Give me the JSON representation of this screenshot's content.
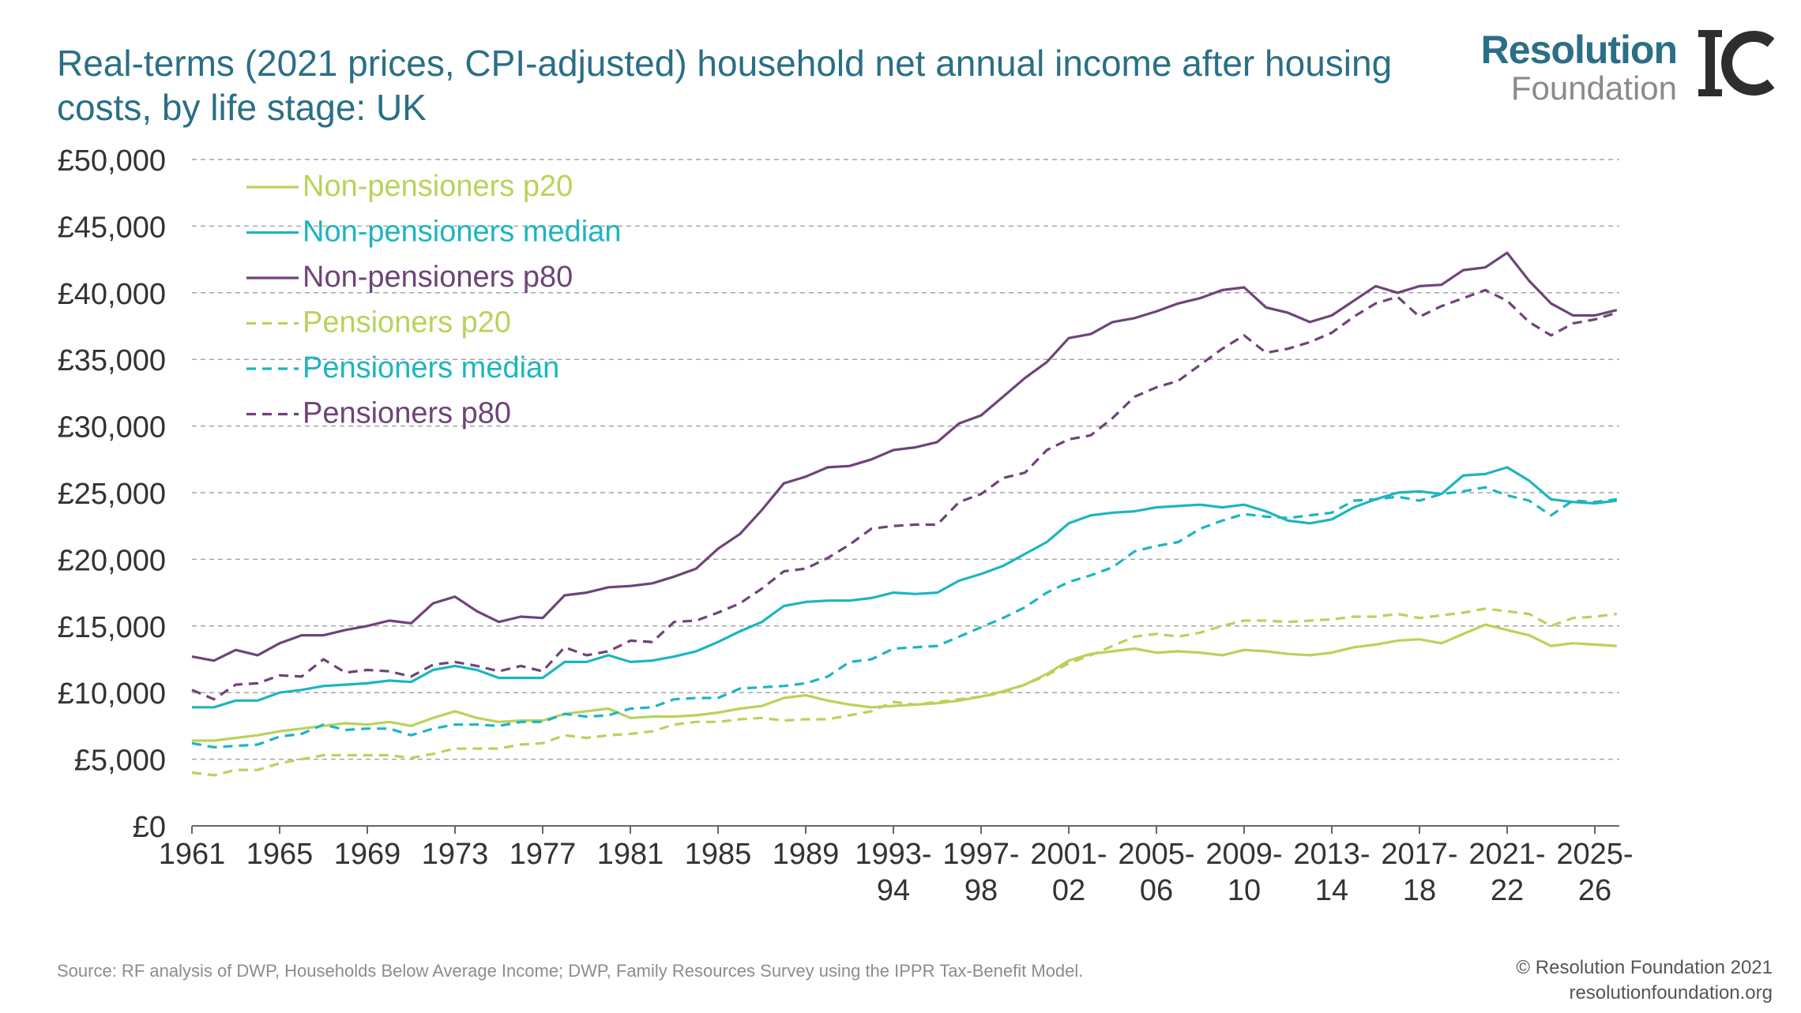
{
  "title": "Real-terms (2021 prices, CPI-adjusted) household net annual income after housing costs, by life stage: UK",
  "logo": {
    "line1": "Resolution",
    "line2": "Foundation",
    "accent": "#c6d82e",
    "icon_name": "ic-monogram-icon"
  },
  "footer": {
    "source": "Source: RF analysis of DWP, Households Below Average Income; DWP, Family Resources Survey using the IPPR Tax-Benefit Model.",
    "copyright": "© Resolution Foundation 2021",
    "website": "resolutionfoundation.org"
  },
  "colors": {
    "title": "#2a6f86",
    "light_green": "#b8d35a",
    "teal": "#1cb5c1",
    "purple": "#6e4478",
    "grid": "#a6a6a6"
  },
  "chart_data": {
    "type": "line",
    "ylim": [
      0,
      50000
    ],
    "yticks": [
      0,
      5000,
      10000,
      15000,
      20000,
      25000,
      30000,
      35000,
      40000,
      45000,
      50000
    ],
    "ytick_labels": [
      "£0",
      "£5,000",
      "£10,000",
      "£15,000",
      "£20,000",
      "£25,000",
      "£30,000",
      "£35,000",
      "£40,000",
      "£45,000",
      "£50,000"
    ],
    "grid": true,
    "legend_position": "top-left",
    "x": [
      "1961",
      "1962",
      "1963",
      "1964",
      "1965",
      "1966",
      "1967",
      "1968",
      "1969",
      "1970",
      "1971",
      "1972",
      "1973",
      "1974",
      "1975",
      "1976",
      "1977",
      "1978",
      "1979",
      "1980",
      "1981",
      "1982",
      "1983",
      "1984",
      "1985",
      "1986",
      "1987",
      "1988",
      "1989",
      "1990",
      "1991",
      "1992",
      "1993-94",
      "1994-95",
      "1995-96",
      "1996-97",
      "1997-98",
      "1998-99",
      "1999-00",
      "2000-01",
      "2001-02",
      "2002-03",
      "2003-04",
      "2004-05",
      "2005-06",
      "2006-07",
      "2007-08",
      "2008-09",
      "2009-10",
      "2010-11",
      "2011-12",
      "2012-13",
      "2013-14",
      "2014-15",
      "2015-16",
      "2016-17",
      "2017-18",
      "2018-19",
      "2019-20",
      "2020-21",
      "2021-22",
      "2022-23",
      "2023-24",
      "2024-25",
      "2025-26",
      "2026-27"
    ],
    "xticks": [
      {
        "label1": "1961",
        "label2": ""
      },
      {
        "label1": "1965",
        "label2": ""
      },
      {
        "label1": "1969",
        "label2": ""
      },
      {
        "label1": "1973",
        "label2": ""
      },
      {
        "label1": "1977",
        "label2": ""
      },
      {
        "label1": "1981",
        "label2": ""
      },
      {
        "label1": "1985",
        "label2": ""
      },
      {
        "label1": "1989",
        "label2": ""
      },
      {
        "label1": "1993-",
        "label2": "94"
      },
      {
        "label1": "1997-",
        "label2": "98"
      },
      {
        "label1": "2001-",
        "label2": "02"
      },
      {
        "label1": "2005-",
        "label2": "06"
      },
      {
        "label1": "2009-",
        "label2": "10"
      },
      {
        "label1": "2013-",
        "label2": "14"
      },
      {
        "label1": "2017-",
        "label2": "18"
      },
      {
        "label1": "2021-",
        "label2": "22"
      },
      {
        "label1": "2025-",
        "label2": "26"
      }
    ],
    "series": [
      {
        "name": "Non-pensioners p20",
        "color": "#b8d35a",
        "dash": "solid",
        "values": [
          6400,
          6400,
          6600,
          6800,
          7100,
          7300,
          7500,
          7700,
          7600,
          7800,
          7500,
          8100,
          8600,
          8100,
          7800,
          7900,
          7900,
          8400,
          8600,
          8800,
          8100,
          8200,
          8200,
          8300,
          8500,
          8800,
          9000,
          9600,
          9800,
          9400,
          9100,
          8900,
          9000,
          9100,
          9200,
          9400,
          9700,
          10100,
          10600,
          11400,
          12400,
          12900,
          13100,
          13300,
          13000,
          13100,
          13000,
          12800,
          13200,
          13100,
          12900,
          12800,
          13000,
          13400,
          13600,
          13900,
          14000,
          13700,
          14400,
          15100,
          14700,
          14300,
          13500,
          13700,
          13600,
          13500
        ]
      },
      {
        "name": "Non-pensioners median",
        "color": "#1cb5c1",
        "dash": "solid",
        "values": [
          8900,
          8900,
          9400,
          9400,
          10000,
          10200,
          10500,
          10600,
          10700,
          10900,
          10800,
          11700,
          12000,
          11700,
          11100,
          11100,
          11100,
          12300,
          12300,
          12800,
          12300,
          12400,
          12700,
          13100,
          13800,
          14600,
          15300,
          16500,
          16800,
          16900,
          16900,
          17100,
          17500,
          17400,
          17500,
          18400,
          18900,
          19500,
          20400,
          21300,
          22700,
          23300,
          23500,
          23600,
          23900,
          24000,
          24100,
          23900,
          24100,
          23600,
          22900,
          22700,
          23000,
          23900,
          24500,
          25000,
          25100,
          24900,
          26300,
          26400,
          26900,
          25900,
          24500,
          24300,
          24200,
          24400
        ]
      },
      {
        "name": "Non-pensioners p80",
        "color": "#6e4478",
        "dash": "solid",
        "values": [
          12700,
          12400,
          13200,
          12800,
          13700,
          14300,
          14300,
          14700,
          15000,
          15400,
          15200,
          16700,
          17200,
          16100,
          15300,
          15700,
          15600,
          17300,
          17500,
          17900,
          18000,
          18200,
          18700,
          19300,
          20800,
          21900,
          23700,
          25700,
          26200,
          26900,
          27000,
          27500,
          28200,
          28400,
          28800,
          30200,
          30800,
          32200,
          33600,
          34800,
          36600,
          36900,
          37800,
          38100,
          38600,
          39200,
          39600,
          40200,
          40400,
          38900,
          38500,
          37800,
          38300,
          39400,
          40500,
          40000,
          40500,
          40600,
          41700,
          41900,
          43000,
          40900,
          39200,
          38300,
          38300,
          38700
        ]
      },
      {
        "name": "Pensioners p20",
        "color": "#b8d35a",
        "dash": "dashed",
        "values": [
          4000,
          3800,
          4200,
          4200,
          4700,
          5000,
          5300,
          5300,
          5300,
          5300,
          5100,
          5400,
          5800,
          5800,
          5800,
          6100,
          6200,
          6800,
          6600,
          6800,
          6900,
          7100,
          7600,
          7800,
          7800,
          8000,
          8100,
          7900,
          8000,
          8000,
          8300,
          8600,
          9300,
          9100,
          9300,
          9500,
          9700,
          10000,
          10600,
          11300,
          12200,
          12800,
          13500,
          14200,
          14400,
          14200,
          14500,
          15000,
          15400,
          15400,
          15300,
          15400,
          15500,
          15700,
          15700,
          15900,
          15600,
          15800,
          16000,
          16300,
          16100,
          15900,
          15000,
          15600,
          15700,
          15900
        ]
      },
      {
        "name": "Pensioners median",
        "color": "#1cb5c1",
        "dash": "dashed",
        "values": [
          6200,
          5900,
          6000,
          6100,
          6700,
          6900,
          7600,
          7200,
          7300,
          7300,
          6800,
          7300,
          7600,
          7600,
          7500,
          7800,
          7800,
          8400,
          8200,
          8300,
          8800,
          8900,
          9500,
          9600,
          9600,
          10300,
          10400,
          10500,
          10700,
          11200,
          12300,
          12500,
          13300,
          13400,
          13500,
          14200,
          14900,
          15600,
          16400,
          17500,
          18300,
          18800,
          19400,
          20600,
          21000,
          21300,
          22300,
          22900,
          23400,
          23200,
          23100,
          23300,
          23500,
          24400,
          24500,
          24700,
          24400,
          24900,
          25100,
          25400,
          24800,
          24400,
          23300,
          24400,
          24300,
          24500
        ]
      },
      {
        "name": "Pensioners p80",
        "color": "#6e4478",
        "dash": "dashed",
        "values": [
          10200,
          9500,
          10600,
          10700,
          11300,
          11200,
          12500,
          11500,
          11700,
          11600,
          11200,
          12100,
          12300,
          12000,
          11600,
          12000,
          11600,
          13400,
          12800,
          13100,
          13900,
          13800,
          15300,
          15400,
          16000,
          16700,
          17800,
          19100,
          19300,
          20100,
          21100,
          22300,
          22500,
          22600,
          22600,
          24300,
          24900,
          26100,
          26500,
          28200,
          29000,
          29300,
          30600,
          32200,
          32900,
          33400,
          34600,
          35800,
          36800,
          35500,
          35800,
          36300,
          37000,
          38200,
          39200,
          39700,
          38200,
          39000,
          39600,
          40200,
          39400,
          37800,
          36800,
          37700,
          38000,
          38500
        ]
      }
    ]
  }
}
